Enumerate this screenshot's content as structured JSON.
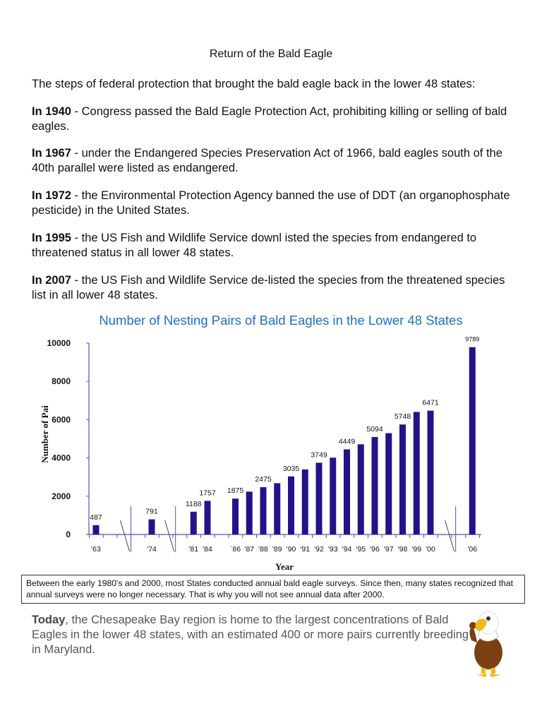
{
  "title": "Return of the Bald Eagle",
  "intro": "The steps of federal protection that brought the bald eagle back in the lower 48 states:",
  "events": [
    {
      "year": "In 1940",
      "text": " - Congress passed the Bald Eagle Protection Act, prohibiting killing or selling of bald eagles."
    },
    {
      "year": "In 1967",
      "text": " - under the Endangered Species Preservation Act of 1966, bald eagles south of the 40th parallel were listed as endangered."
    },
    {
      "year": "In 1972",
      "text": " - the Environmental Protection Agency banned the use of DDT (an organophosphate pesticide) in the United States."
    },
    {
      "year": "In 1995",
      "text": " - the US Fish and Wildlife Service downl isted the species from endangered to threatened status in all lower 48 states."
    },
    {
      "year": "In 2007",
      "text": " - the US Fish and Wildlife Service de-listed the species from the threatened species list in all lower 48 states."
    }
  ],
  "chart_data": {
    "type": "bar",
    "title": "Number of Nesting Pairs of Bald Eagles in the Lower 48 States",
    "xlabel": "Year",
    "ylabel": "Number of Pai",
    "ylim": [
      0,
      10000
    ],
    "yticks": [
      "0",
      "2000",
      "4000",
      "6000",
      "8000",
      "10000"
    ],
    "grid": false,
    "axis_breaks": [
      "'63-'74",
      "'74-'81",
      "'00-'06"
    ],
    "categories": [
      "'63",
      "'74",
      "'81",
      "'84",
      "`86",
      "'87",
      "'88",
      "'89",
      "'90",
      "'91",
      "'92",
      "'93",
      "'94",
      "'95",
      "'96",
      "'97",
      "'98",
      "'99",
      "'00",
      "'06"
    ],
    "values": [
      487,
      791,
      1188,
      1757,
      1875,
      2240,
      2475,
      2680,
      3035,
      3400,
      3749,
      4015,
      4449,
      4712,
      5094,
      5295,
      5748,
      6404,
      6471,
      9789
    ],
    "data_labels": [
      "487",
      "791",
      "1188",
      "1757",
      "1875",
      "",
      "2475",
      "",
      "3035",
      "",
      "3749",
      "",
      "4449",
      "",
      "5094",
      "",
      "5748",
      "",
      "6471",
      "9789"
    ],
    "bar_color": "#23138a",
    "axis_color": "#5a4ec2"
  },
  "note": "Between the early 1980's and 2000, most States conducted annual bald eagle surveys. Since then, many states recognized that annual surveys were no longer necessary. That is why you will not see annual data after 2000.",
  "today": {
    "bold": "Today",
    "text": ", the Chesapeake Bay region is home to the largest concentrations of Bald Eagles in the lower 48 states, with an estimated 400 or more pairs currently breeding in Maryland."
  }
}
